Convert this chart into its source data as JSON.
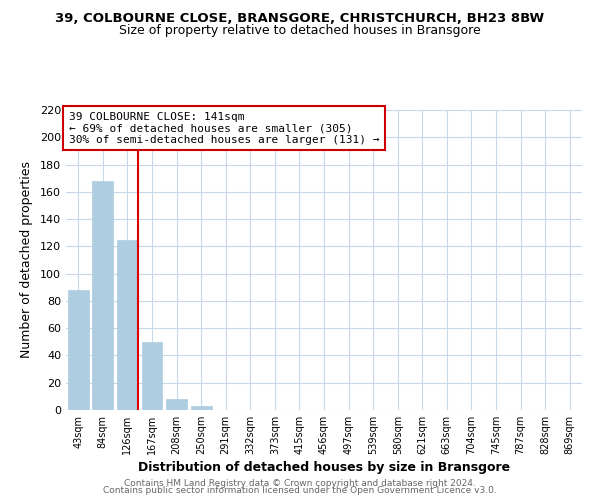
{
  "title": "39, COLBOURNE CLOSE, BRANSGORE, CHRISTCHURCH, BH23 8BW",
  "subtitle": "Size of property relative to detached houses in Bransgore",
  "xlabel": "Distribution of detached houses by size in Bransgore",
  "ylabel": "Number of detached properties",
  "bar_labels": [
    "43sqm",
    "84sqm",
    "126sqm",
    "167sqm",
    "208sqm",
    "250sqm",
    "291sqm",
    "332sqm",
    "373sqm",
    "415sqm",
    "456sqm",
    "497sqm",
    "539sqm",
    "580sqm",
    "621sqm",
    "663sqm",
    "704sqm",
    "745sqm",
    "787sqm",
    "828sqm",
    "869sqm"
  ],
  "bar_values": [
    88,
    168,
    125,
    50,
    8,
    3,
    0,
    0,
    0,
    0,
    0,
    0,
    0,
    0,
    0,
    0,
    0,
    0,
    0,
    0,
    0
  ],
  "bar_color": "#aecde1",
  "bar_edge_color": "#aecde1",
  "ylim": [
    0,
    220
  ],
  "yticks": [
    0,
    20,
    40,
    60,
    80,
    100,
    120,
    140,
    160,
    180,
    200,
    220
  ],
  "annotation_title": "39 COLBOURNE CLOSE: 141sqm",
  "annotation_line1": "← 69% of detached houses are smaller (305)",
  "annotation_line2": "30% of semi-detached houses are larger (131) →",
  "annotation_box_color": "#ffffff",
  "annotation_box_edge": "#cc0000",
  "grid_color": "#c8d8e8",
  "footer1": "Contains HM Land Registry data © Crown copyright and database right 2024.",
  "footer2": "Contains public sector information licensed under the Open Government Licence v3.0.",
  "red_line_bar_index": 2
}
